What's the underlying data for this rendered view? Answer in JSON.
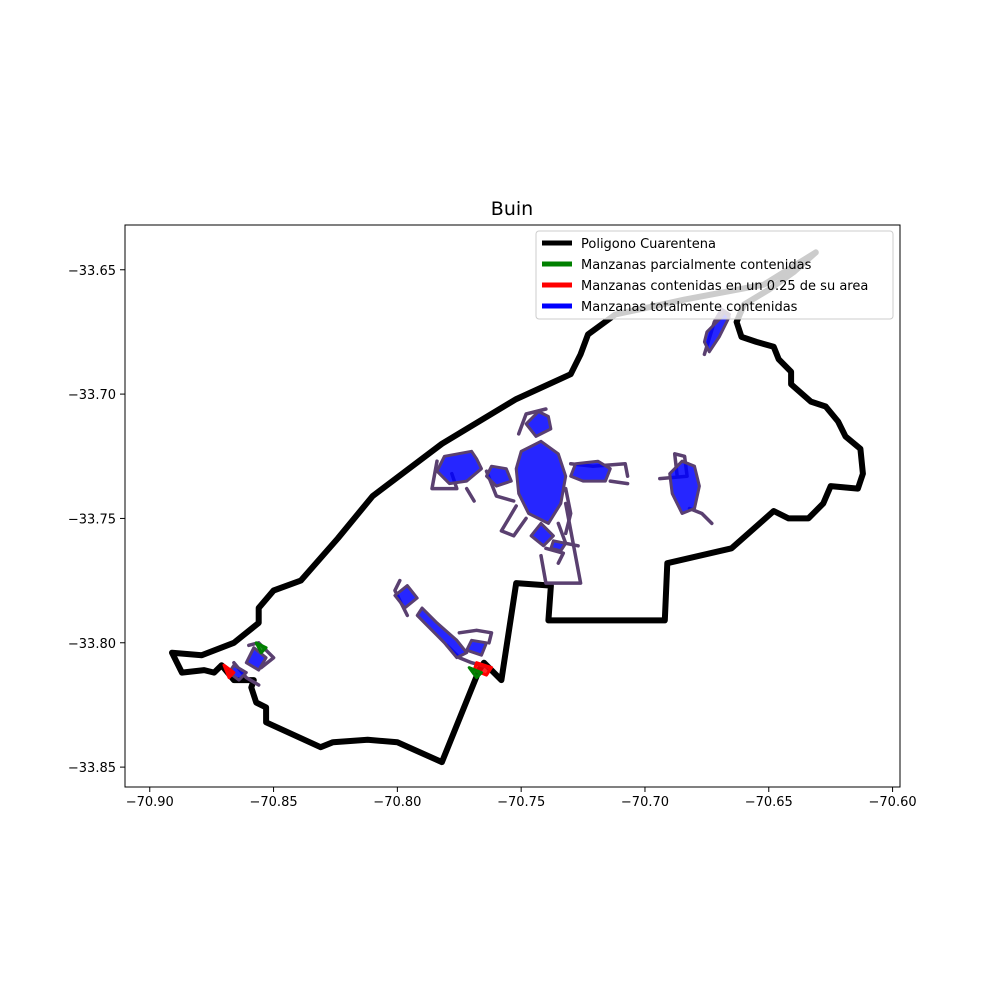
{
  "chart_data": {
    "type": "map",
    "title": "Buin",
    "xlabel": "",
    "ylabel": "",
    "xlim": [
      -70.91,
      -70.597
    ],
    "ylim": [
      -33.858,
      -33.632
    ],
    "xticks": [
      -70.9,
      -70.85,
      -70.8,
      -70.75,
      -70.7,
      -70.65,
      -70.6
    ],
    "xtick_labels": [
      "−70.90",
      "−70.85",
      "−70.80",
      "−70.75",
      "−70.70",
      "−70.65",
      "−70.60"
    ],
    "yticks": [
      -33.65,
      -33.7,
      -33.75,
      -33.8,
      -33.85
    ],
    "ytick_labels": [
      "−33.65",
      "−33.70",
      "−33.75",
      "−33.80",
      "−33.85"
    ],
    "grid": false,
    "legend": {
      "placement": "top-right",
      "entries": [
        {
          "label": "Poligono Cuarentena",
          "color": "#000000"
        },
        {
          "label": "Manzanas parcialmente contenidas",
          "color": "#008000"
        },
        {
          "label": "Manzanas contenidas en un 0.25 de su area",
          "color": "#ff0000"
        },
        {
          "label": "Manzanas totalmente contenidas",
          "color": "#0000ff"
        }
      ]
    },
    "series": [
      {
        "name": "Poligono Cuarentena",
        "type": "polygon",
        "color": "#000000",
        "points": [
          [
            -70.631,
            -33.643
          ],
          [
            -70.652,
            -33.656
          ],
          [
            -70.684,
            -33.662
          ],
          [
            -70.712,
            -33.668
          ],
          [
            -70.723,
            -33.676
          ],
          [
            -70.726,
            -33.684
          ],
          [
            -70.73,
            -33.692
          ],
          [
            -70.752,
            -33.702
          ],
          [
            -70.782,
            -33.72
          ],
          [
            -70.81,
            -33.741
          ],
          [
            -70.824,
            -33.758
          ],
          [
            -70.839,
            -33.775
          ],
          [
            -70.85,
            -33.779
          ],
          [
            -70.856,
            -33.786
          ],
          [
            -70.856,
            -33.792
          ],
          [
            -70.866,
            -33.8
          ],
          [
            -70.879,
            -33.805
          ],
          [
            -70.891,
            -33.804
          ],
          [
            -70.887,
            -33.812
          ],
          [
            -70.878,
            -33.811
          ],
          [
            -70.874,
            -33.812
          ],
          [
            -70.871,
            -33.809
          ],
          [
            -70.866,
            -33.815
          ],
          [
            -70.858,
            -33.815
          ],
          [
            -70.859,
            -33.818
          ],
          [
            -70.857,
            -33.824
          ],
          [
            -70.853,
            -33.826
          ],
          [
            -70.853,
            -33.832
          ],
          [
            -70.831,
            -33.842
          ],
          [
            -70.826,
            -33.84
          ],
          [
            -70.812,
            -33.839
          ],
          [
            -70.8,
            -33.84
          ],
          [
            -70.782,
            -33.848
          ],
          [
            -70.767,
            -33.811
          ],
          [
            -70.765,
            -33.808
          ],
          [
            -70.758,
            -33.815
          ],
          [
            -70.752,
            -33.776
          ],
          [
            -70.738,
            -33.777
          ],
          [
            -70.739,
            -33.791
          ],
          [
            -70.692,
            -33.791
          ],
          [
            -70.691,
            -33.768
          ],
          [
            -70.665,
            -33.762
          ],
          [
            -70.648,
            -33.747
          ],
          [
            -70.642,
            -33.75
          ],
          [
            -70.634,
            -33.75
          ],
          [
            -70.628,
            -33.744
          ],
          [
            -70.625,
            -33.737
          ],
          [
            -70.614,
            -33.738
          ],
          [
            -70.612,
            -33.732
          ],
          [
            -70.613,
            -33.722
          ],
          [
            -70.619,
            -33.717
          ],
          [
            -70.622,
            -33.711
          ],
          [
            -70.627,
            -33.705
          ],
          [
            -70.633,
            -33.703
          ],
          [
            -70.641,
            -33.696
          ],
          [
            -70.641,
            -33.691
          ],
          [
            -70.646,
            -33.686
          ],
          [
            -70.648,
            -33.681
          ],
          [
            -70.655,
            -33.679
          ],
          [
            -70.661,
            -33.677
          ],
          [
            -70.663,
            -33.671
          ],
          [
            -70.66,
            -33.664
          ],
          [
            -70.65,
            -33.658
          ],
          [
            -70.64,
            -33.651
          ]
        ]
      },
      {
        "name": "Manzanas totalmente contenidas",
        "type": "clusters",
        "color": "#0000ff",
        "edge_color": "#5a4070",
        "clusters": [
          [
            [
              -70.77,
              -33.723
            ],
            [
              -70.781,
              -33.725
            ],
            [
              -70.784,
              -33.731
            ],
            [
              -70.779,
              -33.736
            ],
            [
              -70.772,
              -33.735
            ],
            [
              -70.766,
              -33.73
            ],
            [
              -70.768,
              -33.726
            ]
          ],
          [
            [
              -70.762,
              -33.729
            ],
            [
              -70.756,
              -33.73
            ],
            [
              -70.754,
              -33.735
            ],
            [
              -70.76,
              -33.737
            ],
            [
              -70.764,
              -33.733
            ]
          ],
          [
            [
              -70.742,
              -33.719
            ],
            [
              -70.75,
              -33.723
            ],
            [
              -70.752,
              -33.73
            ],
            [
              -70.751,
              -33.74
            ],
            [
              -70.747,
              -33.748
            ],
            [
              -70.739,
              -33.752
            ],
            [
              -70.734,
              -33.744
            ],
            [
              -70.732,
              -33.733
            ],
            [
              -70.735,
              -33.724
            ]
          ],
          [
            [
              -70.743,
              -33.707
            ],
            [
              -70.748,
              -33.712
            ],
            [
              -70.744,
              -33.717
            ],
            [
              -70.738,
              -33.714
            ],
            [
              -70.739,
              -33.709
            ]
          ],
          [
            [
              -70.728,
              -33.728
            ],
            [
              -70.719,
              -33.727
            ],
            [
              -70.714,
              -33.73
            ],
            [
              -70.716,
              -33.735
            ],
            [
              -70.725,
              -33.735
            ],
            [
              -70.73,
              -33.733
            ]
          ],
          [
            [
              -70.742,
              -33.752
            ],
            [
              -70.746,
              -33.757
            ],
            [
              -70.741,
              -33.761
            ],
            [
              -70.737,
              -33.757
            ]
          ],
          [
            [
              -70.737,
              -33.759
            ],
            [
              -70.732,
              -33.76
            ],
            [
              -70.734,
              -33.763
            ],
            [
              -70.738,
              -33.762
            ]
          ],
          [
            [
              -70.685,
              -33.727
            ],
            [
              -70.69,
              -33.732
            ],
            [
              -70.689,
              -33.74
            ],
            [
              -70.685,
              -33.748
            ],
            [
              -70.68,
              -33.746
            ],
            [
              -70.678,
              -33.737
            ],
            [
              -70.68,
              -33.729
            ]
          ],
          [
            [
              -70.675,
              -33.675
            ],
            [
              -70.67,
              -33.67
            ],
            [
              -70.668,
              -33.667
            ],
            [
              -70.666,
              -33.669
            ],
            [
              -70.67,
              -33.677
            ],
            [
              -70.674,
              -33.683
            ],
            [
              -70.676,
              -33.679
            ]
          ],
          [
            [
              -70.796,
              -33.777
            ],
            [
              -70.801,
              -33.781
            ],
            [
              -70.797,
              -33.786
            ],
            [
              -70.792,
              -33.782
            ]
          ],
          [
            [
              -70.79,
              -33.786
            ],
            [
              -70.784,
              -33.792
            ],
            [
              -70.776,
              -33.799
            ],
            [
              -70.772,
              -33.804
            ],
            [
              -70.776,
              -33.806
            ],
            [
              -70.781,
              -33.8
            ],
            [
              -70.788,
              -33.793
            ],
            [
              -70.792,
              -33.789
            ]
          ],
          [
            [
              -70.77,
              -33.799
            ],
            [
              -70.764,
              -33.8
            ],
            [
              -70.766,
              -33.805
            ],
            [
              -70.772,
              -33.803
            ]
          ],
          [
            [
              -70.858,
              -33.802
            ],
            [
              -70.853,
              -33.806
            ],
            [
              -70.856,
              -33.811
            ],
            [
              -70.861,
              -33.808
            ]
          ],
          [
            [
              -70.866,
              -33.809
            ],
            [
              -70.861,
              -33.812
            ],
            [
              -70.864,
              -33.815
            ],
            [
              -70.868,
              -33.812
            ]
          ]
        ],
        "roads": [
          [
            [
              -70.784,
              -33.727
            ],
            [
              -70.786,
              -33.738
            ],
            [
              -70.776,
              -33.738
            ],
            [
              -70.778,
              -33.732
            ]
          ],
          [
            [
              -70.772,
              -33.738
            ],
            [
              -70.769,
              -33.743
            ]
          ],
          [
            [
              -70.764,
              -33.731
            ],
            [
              -70.76,
              -33.741
            ],
            [
              -70.753,
              -33.743
            ]
          ],
          [
            [
              -70.752,
              -33.745
            ],
            [
              -70.758,
              -33.755
            ],
            [
              -70.753,
              -33.757
            ],
            [
              -70.748,
              -33.75
            ]
          ],
          [
            [
              -70.74,
              -33.706
            ],
            [
              -70.748,
              -33.708
            ],
            [
              -70.751,
              -33.716
            ]
          ],
          [
            [
              -70.735,
              -33.752
            ],
            [
              -70.732,
              -33.76
            ],
            [
              -70.727,
              -33.761
            ]
          ],
          [
            [
              -70.732,
              -33.738
            ],
            [
              -70.73,
              -33.748
            ],
            [
              -70.732,
              -33.756
            ]
          ],
          [
            [
              -70.73,
              -33.728
            ],
            [
              -70.721,
              -33.729
            ],
            [
              -70.708,
              -33.728
            ],
            [
              -70.707,
              -33.733
            ]
          ],
          [
            [
              -70.714,
              -33.735
            ],
            [
              -70.707,
              -33.736
            ]
          ],
          [
            [
              -70.74,
              -33.762
            ],
            [
              -70.733,
              -33.764
            ],
            [
              -70.735,
              -33.768
            ]
          ],
          [
            [
              -70.732,
              -33.744
            ],
            [
              -70.726,
              -33.776
            ],
            [
              -70.74,
              -33.776
            ],
            [
              -70.742,
              -33.765
            ]
          ],
          [
            [
              -70.694,
              -33.734
            ],
            [
              -70.683,
              -33.733
            ],
            [
              -70.684,
              -33.725
            ],
            [
              -70.688,
              -33.724
            ],
            [
              -70.687,
              -33.733
            ]
          ],
          [
            [
              -70.682,
              -33.746
            ],
            [
              -70.677,
              -33.748
            ],
            [
              -70.673,
              -33.752
            ]
          ],
          [
            [
              -70.676,
              -33.684
            ],
            [
              -70.672,
              -33.671
            ],
            [
              -70.669,
              -33.666
            ],
            [
              -70.666,
              -33.668
            ]
          ],
          [
            [
              -70.799,
              -33.775
            ],
            [
              -70.801,
              -33.779
            ],
            [
              -70.796,
              -33.789
            ]
          ],
          [
            [
              -70.78,
              -33.801
            ],
            [
              -70.775,
              -33.806
            ],
            [
              -70.77,
              -33.808
            ],
            [
              -70.763,
              -33.81
            ]
          ],
          [
            [
              -70.775,
              -33.796
            ],
            [
              -70.768,
              -33.795
            ],
            [
              -70.762,
              -33.796
            ],
            [
              -70.763,
              -33.8
            ]
          ],
          [
            [
              -70.86,
              -33.801
            ],
            [
              -70.856,
              -33.8
            ],
            [
              -70.85,
              -33.806
            ],
            [
              -70.855,
              -33.81
            ]
          ],
          [
            [
              -70.866,
              -33.808
            ],
            [
              -70.861,
              -33.814
            ],
            [
              -70.856,
              -33.817
            ]
          ]
        ]
      },
      {
        "name": "Manzanas contenidas en un 0.25 de su area",
        "type": "clusters",
        "color": "#ff0000",
        "clusters": [
          [
            [
              -70.768,
              -33.808
            ],
            [
              -70.762,
              -33.81
            ],
            [
              -70.764,
              -33.813
            ],
            [
              -70.769,
              -33.811
            ]
          ],
          [
            [
              -70.87,
              -33.809
            ],
            [
              -70.866,
              -33.812
            ],
            [
              -70.868,
              -33.814
            ]
          ]
        ]
      },
      {
        "name": "Manzanas parcialmente contenidas",
        "type": "clusters",
        "color": "#008000",
        "clusters": [
          [
            [
              -70.771,
              -33.81
            ],
            [
              -70.766,
              -33.812
            ],
            [
              -70.768,
              -33.814
            ]
          ],
          [
            [
              -70.857,
              -33.8
            ],
            [
              -70.853,
              -33.802
            ],
            [
              -70.855,
              -33.804
            ]
          ]
        ]
      }
    ]
  }
}
